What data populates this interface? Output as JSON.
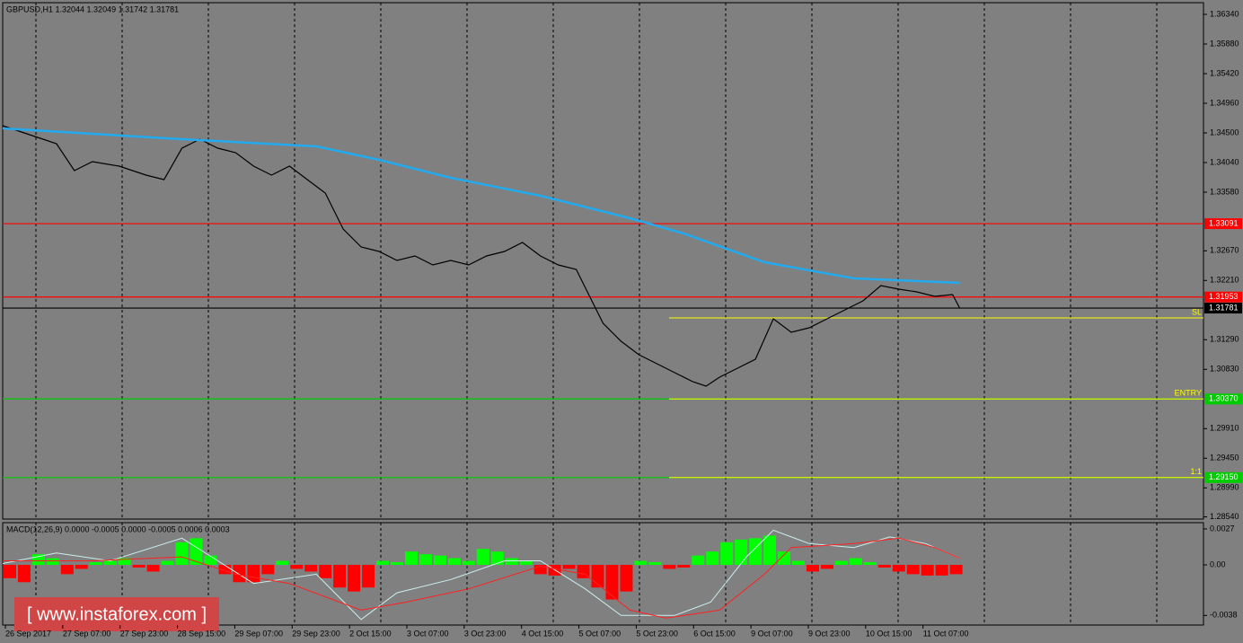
{
  "chart_data": [
    {
      "type": "line",
      "title": "GBPUSD,H1  1.32044 1.32049 1.31742 1.31781",
      "xlim": [
        0,
        335
      ],
      "xticks": [
        {
          "value": 0.75,
          "label": "26 Sep 2017"
        },
        {
          "value": 16.75,
          "label": "27 Sep 07:00"
        },
        {
          "value": 32.75,
          "label": "27 Sep 23:00"
        },
        {
          "value": 48.75,
          "label": "28 Sep 15:00"
        },
        {
          "value": 64.75,
          "label": "29 Sep 07:00"
        },
        {
          "value": 80.75,
          "label": "29 Sep 23:00"
        },
        {
          "value": 96.75,
          "label": "2 Oct 15:00"
        },
        {
          "value": 112.75,
          "label": "3 Oct 07:00"
        },
        {
          "value": 128.75,
          "label": "3 Oct 23:00"
        },
        {
          "value": 144.75,
          "label": "4 Oct 15:00"
        },
        {
          "value": 160.75,
          "label": "5 Oct 07:00"
        },
        {
          "value": 176.75,
          "label": "5 Oct 23:00"
        },
        {
          "value": 192.75,
          "label": "6 Oct 15:00"
        },
        {
          "value": 208.75,
          "label": "9 Oct 07:00"
        },
        {
          "value": 224.75,
          "label": "9 Oct 23:00"
        },
        {
          "value": 240.75,
          "label": "10 Oct 15:00"
        },
        {
          "value": 256.75,
          "label": "11 Oct 07:00"
        }
      ],
      "ylim": [
        1.28506,
        1.36563
      ],
      "yticks": [
        {
          "value": 1.3634,
          "label": "1.36340"
        },
        {
          "value": 1.3588,
          "label": "1.35880"
        },
        {
          "value": 1.3542,
          "label": "1.35420"
        },
        {
          "value": 1.3496,
          "label": "1.34960"
        },
        {
          "value": 1.345,
          "label": "1.34500"
        },
        {
          "value": 1.3404,
          "label": "1.34040"
        },
        {
          "value": 1.3358,
          "label": "1.33580"
        },
        {
          "value": 1.3267,
          "label": "1.32670"
        },
        {
          "value": 1.3221,
          "label": "1.32210"
        },
        {
          "value": 1.3129,
          "label": "1.31290"
        },
        {
          "value": 1.3083,
          "label": "1.30830"
        },
        {
          "value": 1.2991,
          "label": "1.29910"
        },
        {
          "value": 1.2945,
          "label": "1.29450"
        },
        {
          "value": 1.2899,
          "label": "1.28990"
        },
        {
          "value": 1.2854,
          "label": "1.28540"
        }
      ],
      "series": [
        {
          "color": "#000000",
          "x": [
            0,
            7.5,
            15,
            20,
            25,
            32.5,
            40,
            45,
            50,
            55,
            60,
            65,
            70,
            75,
            80,
            85,
            90,
            95,
            100,
            105,
            110,
            115,
            120,
            125,
            130,
            135,
            140,
            145,
            150,
            155,
            160,
            163.75,
            167.5,
            172.5,
            177.5,
            182.5,
            187.5,
            192.5,
            196.25,
            200,
            205,
            210,
            215,
            220,
            225,
            230,
            235,
            240,
            245,
            250,
            255,
            260,
            265,
            267
          ],
          "values": [
            1.34612,
            1.34472,
            1.34333,
            1.33915,
            1.34054,
            1.33984,
            1.33845,
            1.33775,
            1.34263,
            1.34402,
            1.34263,
            1.34193,
            1.33984,
            1.33845,
            1.33984,
            1.33775,
            1.33566,
            1.33009,
            1.3273,
            1.3266,
            1.32521,
            1.3259,
            1.32451,
            1.32521,
            1.32451,
            1.3259,
            1.3266,
            1.32799,
            1.3259,
            1.32451,
            1.32381,
            1.31963,
            1.31545,
            1.31266,
            1.31057,
            1.30918,
            1.30778,
            1.30639,
            1.30569,
            1.30709,
            1.30848,
            1.30987,
            1.31615,
            1.31406,
            1.31475,
            1.31615,
            1.31754,
            1.31893,
            1.3213,
            1.32075,
            1.32033,
            1.31963,
            1.31991,
            1.31781
          ]
        },
        {
          "color": "#22aaee",
          "x": [
            0,
            50,
            87.5,
            105,
            125,
            150,
            175,
            190,
            212.5,
            237.5,
            267
          ],
          "values": [
            1.3457,
            1.34402,
            1.34291,
            1.34082,
            1.33803,
            1.33524,
            1.33176,
            1.32939,
            1.32493,
            1.32242,
            1.32172
          ]
        }
      ],
      "levels": [
        {
          "value": 1.33091,
          "color": "#ff0000"
        },
        {
          "value": 1.31953,
          "color": "#ff0000"
        },
        {
          "value": 1.31781,
          "color": "#000000"
        },
        {
          "value": 1.3037,
          "label": "1.30370",
          "color": "#00cc00"
        },
        {
          "value": 1.2915,
          "label": "1.29150",
          "color": "#00cc00"
        }
      ],
      "trade_lines": [
        {
          "name": "SL",
          "value": 1.31628,
          "color": "#ffff00"
        },
        {
          "name": "ENTRY",
          "value": 1.3037,
          "color": "#ffff00"
        },
        {
          "name": "1:1",
          "value": 1.2915,
          "color": "#ffff00"
        }
      ]
    },
    {
      "type": "macd",
      "title": "MACD(12,26,9) 0.0000 -0.0005 0.0000 -0.0005 0.0006 0.0003",
      "ylim": [
        -0.00452,
        0.00317
      ],
      "yticks": [
        0.0027,
        {
          "value": 0,
          "label": "0.00"
        },
        -0.0038
      ],
      "color": "#00ff00",
      "negative_color": "#ff0000",
      "x": [
        2,
        6,
        10,
        14,
        18,
        22,
        26,
        30,
        34,
        38,
        42,
        46,
        50,
        54,
        58,
        62,
        66,
        70,
        74,
        78,
        82,
        86,
        90,
        94,
        98,
        102,
        106,
        110,
        114,
        118,
        122,
        126,
        130,
        134,
        138,
        142,
        146,
        150,
        154,
        158,
        162,
        166,
        170,
        174,
        178,
        182,
        186,
        190,
        194,
        198,
        202,
        206,
        210,
        214,
        218,
        222,
        226,
        230,
        234,
        238,
        242,
        246,
        250,
        254,
        258,
        262,
        266
      ],
      "values": [
        -0.001,
        -0.0013,
        0.0008,
        0.0005,
        -0.0007,
        -0.0003,
        0.0002,
        0.0003,
        0.0005,
        -0.0002,
        -0.0005,
        0.0003,
        0.0017,
        0.002,
        0.0007,
        -0.0007,
        -0.0013,
        -0.0013,
        -0.0007,
        0.0003,
        -0.0003,
        -0.0005,
        -0.001,
        -0.0017,
        -0.002,
        -0.0017,
        0.0003,
        0.0002,
        0.001,
        0.0008,
        0.0007,
        0.0005,
        0.0003,
        0.0012,
        0.001,
        0.0005,
        0.0003,
        -0.0007,
        -0.0008,
        -0.0003,
        -0.001,
        -0.0017,
        -0.0026,
        -0.002,
        0.0003,
        0.0002,
        -0.0003,
        -0.0002,
        0.0007,
        0.001,
        0.0017,
        0.0019,
        0.002,
        0.0022,
        0.001,
        0.0003,
        -0.0005,
        -0.0003,
        0.0003,
        0.0005,
        0.0002,
        -0.0002,
        -0.0005,
        -0.0007,
        -0.0008,
        -0.0008,
        -0.0007
      ],
      "lines": [
        {
          "color": "#cceeee",
          "x": [
            0,
            15,
            30,
            50,
            60,
            70,
            87.5,
            100,
            110,
            125,
            140,
            150,
            162.5,
            172.5,
            187.5,
            197.5,
            207.5,
            215,
            225,
            237.5,
            247.5,
            257.5,
            267
          ],
          "values": [
            0.0001,
            0.0009,
            0.0003,
            0.002,
            0.0003,
            -0.0014,
            -0.0007,
            -0.0041,
            -0.0021,
            -0.0011,
            0.0003,
            0.0003,
            -0.0018,
            -0.0038,
            -0.0038,
            -0.0028,
            0.0006,
            0.0026,
            0.0016,
            0.0013,
            0.0021,
            0.0016,
            0.0005
          ]
        },
        {
          "color": "#ff2020",
          "x": [
            0,
            25,
            50,
            65,
            80,
            100,
            112.5,
            130,
            150,
            162.5,
            175,
            185,
            200,
            212.5,
            220,
            237.5,
            250,
            260,
            267
          ],
          "values": [
            0.0003,
            0.0003,
            0.0006,
            -0.0007,
            -0.0014,
            -0.0034,
            -0.0028,
            -0.0018,
            -0.0001,
            -0.0007,
            -0.0034,
            -0.004,
            -0.0034,
            -0.0007,
            0.0013,
            0.0016,
            0.002,
            0.0013,
            0.0005
          ]
        }
      ]
    }
  ],
  "watermark": "[ www.instaforex.com ]"
}
